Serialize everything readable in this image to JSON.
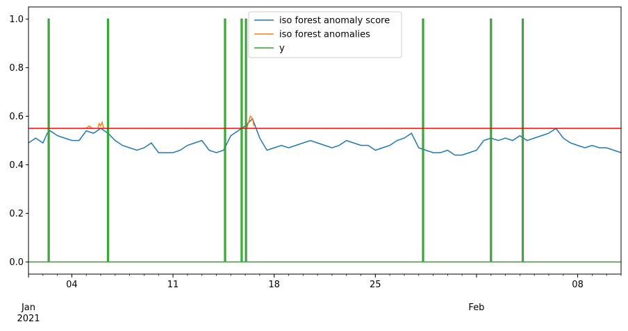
{
  "chart_data": {
    "type": "line",
    "title": "",
    "xlabel": "",
    "ylabel": "",
    "x_range_days": [
      0,
      41
    ],
    "ylim": [
      -0.05,
      1.05
    ],
    "yticks": [
      0.0,
      0.2,
      0.4,
      0.6,
      0.8,
      1.0
    ],
    "ytick_labels": [
      "0.0",
      "0.2",
      "0.4",
      "0.6",
      "0.8",
      "1.0"
    ],
    "xticks": [
      {
        "day": 0,
        "label": "Jan\n2021"
      },
      {
        "day": 3,
        "label": "04"
      },
      {
        "day": 10,
        "label": "11"
      },
      {
        "day": 17,
        "label": "18"
      },
      {
        "day": 24,
        "label": "25"
      },
      {
        "day": 31,
        "label": "Feb"
      },
      {
        "day": 38,
        "label": "08"
      }
    ],
    "threshold": {
      "value": 0.55,
      "color": "#ff0000"
    },
    "legend": {
      "position": "top-center",
      "entries": [
        {
          "label": "iso forest anomaly score",
          "color": "#1f77b4"
        },
        {
          "label": "iso forest anomalies",
          "color": "#ff7f0e"
        },
        {
          "label": "y",
          "color": "#2ca02c"
        }
      ]
    },
    "series": [
      {
        "name": "iso forest anomaly score",
        "color": "#1f77b4",
        "x": [
          0,
          0.5,
          1,
          1.3,
          1.5,
          2,
          2.5,
          3,
          3.5,
          4,
          4.5,
          5,
          5.5,
          6,
          6.5,
          7,
          7.5,
          8,
          8.5,
          9,
          9.5,
          10,
          10.5,
          11,
          11.5,
          12,
          12.5,
          13,
          13.5,
          14,
          14.5,
          15,
          15.5,
          16,
          16.5,
          17,
          17.5,
          18,
          18.5,
          19,
          19.5,
          20,
          20.5,
          21,
          21.5,
          22,
          22.5,
          23,
          23.5,
          24,
          24.5,
          25,
          25.5,
          26,
          26.5,
          27,
          27.5,
          28,
          28.5,
          29,
          29.5,
          30,
          30.5,
          31,
          31.5,
          32,
          32.5,
          33,
          33.5,
          34,
          34.5,
          35,
          35.5,
          36,
          36.5,
          37,
          37.5,
          38,
          38.5,
          39,
          39.5,
          40,
          40.5,
          41
        ],
        "values": [
          0.49,
          0.51,
          0.49,
          0.53,
          0.54,
          0.52,
          0.51,
          0.5,
          0.5,
          0.54,
          0.53,
          0.55,
          0.53,
          0.5,
          0.48,
          0.47,
          0.46,
          0.47,
          0.49,
          0.45,
          0.45,
          0.45,
          0.46,
          0.48,
          0.49,
          0.5,
          0.46,
          0.45,
          0.46,
          0.52,
          0.54,
          0.56,
          0.59,
          0.51,
          0.46,
          0.47,
          0.48,
          0.47,
          0.48,
          0.49,
          0.5,
          0.49,
          0.48,
          0.47,
          0.48,
          0.5,
          0.49,
          0.48,
          0.48,
          0.46,
          0.47,
          0.48,
          0.5,
          0.51,
          0.53,
          0.47,
          0.46,
          0.45,
          0.45,
          0.46,
          0.44,
          0.44,
          0.45,
          0.46,
          0.5,
          0.51,
          0.5,
          0.51,
          0.5,
          0.52,
          0.5,
          0.51,
          0.52,
          0.53,
          0.55,
          0.51,
          0.49,
          0.48,
          0.47,
          0.48,
          0.47,
          0.47,
          0.46,
          0.45
        ]
      },
      {
        "name": "iso forest anomalies",
        "color": "#ff7f0e",
        "segments": [
          {
            "x": [
              4.0,
              4.2,
              4.4
            ],
            "values": [
              0.55,
              0.56,
              0.55
            ]
          },
          {
            "x": [
              4.8,
              4.9,
              5.0,
              5.1,
              5.2
            ],
            "values": [
              0.55,
              0.57,
              0.56,
              0.575,
              0.55
            ]
          },
          {
            "x": [
              15.1,
              15.25,
              15.35,
              15.5,
              15.6
            ],
            "values": [
              0.55,
              0.58,
              0.6,
              0.59,
              0.56
            ]
          }
        ]
      },
      {
        "name": "y",
        "color": "#2ca02c",
        "baseline": 0,
        "spikes_day": [
          1.4,
          5.5,
          13.6,
          14.75,
          15.05,
          27.3,
          32.0,
          34.2
        ],
        "spike_value": 1
      }
    ]
  }
}
